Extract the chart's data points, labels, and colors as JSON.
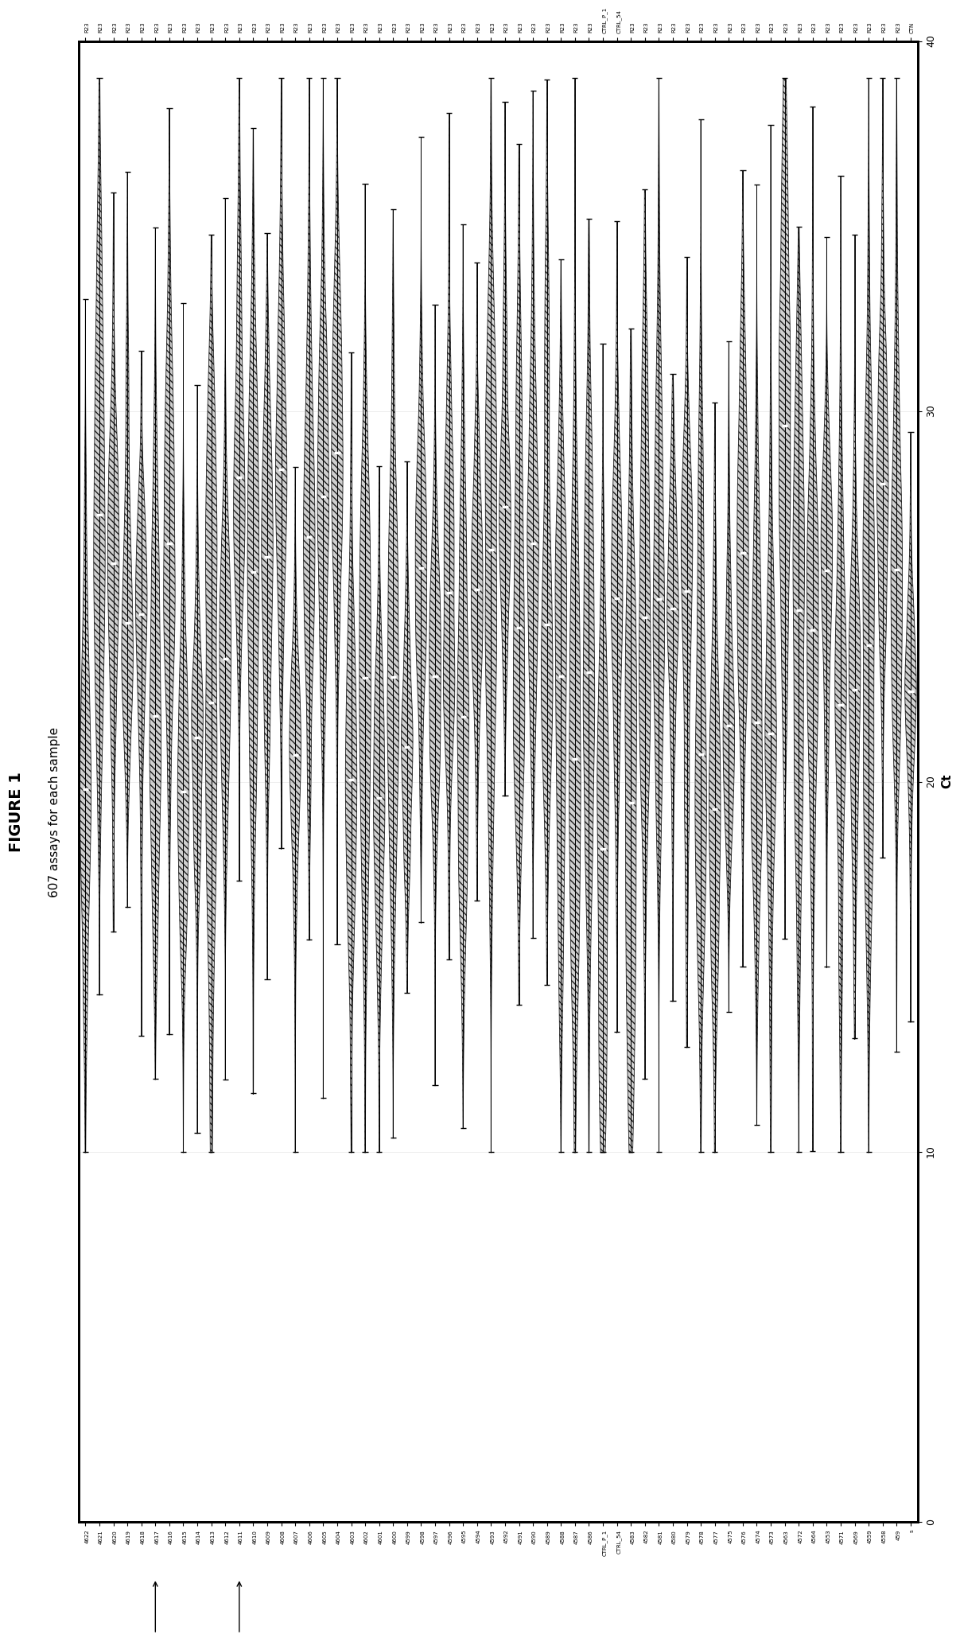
{
  "title": "FIGURE 1",
  "subtitle": "607 assays for each sample",
  "xlabel": "Ct",
  "num_samples": 60,
  "ct_min": 0,
  "ct_max": 40,
  "xticks": [
    0,
    10,
    20,
    30,
    40
  ],
  "background_color": "#ffffff",
  "violin_facecolor": "#c8c8c8",
  "violin_edge_color": "#000000",
  "median_color": "#ffffff",
  "hatch_pattern": "////",
  "figure_width": 20.54,
  "figure_height": 12.4,
  "sample_labels_left": [
    "s",
    "459",
    "4558",
    "4559",
    "4569",
    "4571",
    "4553",
    "4564",
    "4572",
    "4563",
    "4573",
    "4574",
    "4576",
    "4575",
    "4577",
    "4578",
    "4579",
    "4580",
    "4581",
    "4582",
    "4583",
    "CTRL_54",
    "CTRL_P_1",
    "4586",
    "4587",
    "4588",
    "4589",
    "4590",
    "4591",
    "4592",
    "4593",
    "4594",
    "4595",
    "4596",
    "4597",
    "4598",
    "4599",
    "4600",
    "4601",
    "4602",
    "4603",
    "4604",
    "4605",
    "4606",
    "4607",
    "4608",
    "4609",
    "4610",
    "4611",
    "4612",
    "4613",
    "4614",
    "4615",
    "4616",
    "4617",
    "4618",
    "4619",
    "4620",
    "4621",
    "4622"
  ],
  "sample_labels_right": [
    "CTN",
    "R23",
    "R23",
    "R23",
    "R23",
    "R23",
    "R23",
    "R23",
    "R23",
    "R23",
    "R23",
    "R23",
    "R23",
    "R23",
    "R23",
    "R23",
    "R23",
    "R23",
    "R23",
    "R23",
    "R23",
    "CTRL_54",
    "CTRL_P_1",
    "R23",
    "R23",
    "R23",
    "R23",
    "R23",
    "R23",
    "R23",
    "R23",
    "R23",
    "R23",
    "R23",
    "R23",
    "R23",
    "R23",
    "R23",
    "R23",
    "R23",
    "R23",
    "R23",
    "R23",
    "R23",
    "R23",
    "R23",
    "R23",
    "R23",
    "R23",
    "R23",
    "R23",
    "R23",
    "R23",
    "R23",
    "R23",
    "R23",
    "R23",
    "R23",
    "R23",
    "R23"
  ],
  "arrow_indices": [
    5,
    11
  ],
  "violin_width": 0.82
}
